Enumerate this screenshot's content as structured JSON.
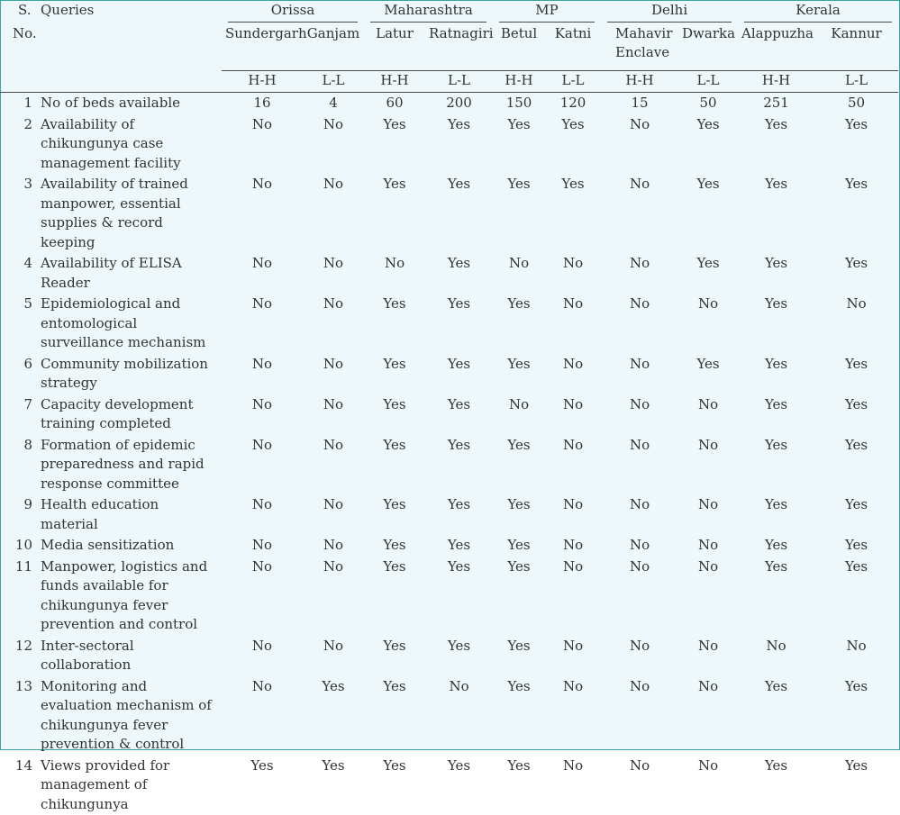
{
  "header": {
    "sno_label": "S.",
    "no_label": "No.",
    "queries_label": "Queries",
    "states": [
      {
        "name": "Orissa",
        "districts": [
          "Sundergarh",
          "Ganjam"
        ]
      },
      {
        "name": "Maharashtra",
        "districts": [
          "Latur",
          "Ratnagiri"
        ]
      },
      {
        "name": "MP",
        "districts": [
          "Betul",
          "Katni"
        ]
      },
      {
        "name": "Delhi",
        "districts": [
          "Mahavir Enclave",
          "Dwarka"
        ]
      },
      {
        "name": "Kerala",
        "districts": [
          "Alappuzha",
          "Kannur"
        ]
      }
    ],
    "types": [
      "H-H",
      "L-L",
      "H-H",
      "L-L",
      "H-H",
      "L-L",
      "H-H",
      "L-L",
      "H-H",
      "L-L"
    ]
  },
  "rows": [
    {
      "no": "1",
      "query": "No of beds available",
      "values": [
        "16",
        "4",
        "60",
        "200",
        "150",
        "120",
        "15",
        "50",
        "251",
        "50"
      ]
    },
    {
      "no": "2",
      "query": "Availability of chikungunya case management facility",
      "values": [
        "No",
        "No",
        "Yes",
        "Yes",
        "Yes",
        "Yes",
        "No",
        "Yes",
        "Yes",
        "Yes"
      ]
    },
    {
      "no": "3",
      "query": "Availability of trained manpower, essential supplies & record keeping",
      "values": [
        "No",
        "No",
        "Yes",
        "Yes",
        "Yes",
        "Yes",
        "No",
        "Yes",
        "Yes",
        "Yes"
      ]
    },
    {
      "no": "4",
      "query": "Availability of ELISA Reader",
      "values": [
        "No",
        "No",
        "No",
        "Yes",
        "No",
        "No",
        "No",
        "Yes",
        "Yes",
        "Yes"
      ]
    },
    {
      "no": "5",
      "query": "Epidemiological and entomological surveillance mechanism",
      "values": [
        "No",
        "No",
        "Yes",
        "Yes",
        "Yes",
        "No",
        "No",
        "No",
        "Yes",
        "No"
      ]
    },
    {
      "no": "6",
      "query": "Community mobilization strategy",
      "values": [
        "No",
        "No",
        "Yes",
        "Yes",
        "Yes",
        "No",
        "No",
        "Yes",
        "Yes",
        "Yes"
      ]
    },
    {
      "no": "7",
      "query": "Capacity development training completed",
      "values": [
        "No",
        "No",
        "Yes",
        "Yes",
        "No",
        "No",
        "No",
        "No",
        "Yes",
        "Yes"
      ]
    },
    {
      "no": "8",
      "query": "Formation of epidemic preparedness and rapid response committee",
      "values": [
        "No",
        "No",
        "Yes",
        "Yes",
        "Yes",
        "No",
        "No",
        "No",
        "Yes",
        "Yes"
      ]
    },
    {
      "no": "9",
      "query": "Health education material",
      "values": [
        "No",
        "No",
        "Yes",
        "Yes",
        "Yes",
        "No",
        "No",
        "No",
        "Yes",
        "Yes"
      ]
    },
    {
      "no": "10",
      "query": "Media sensitization",
      "values": [
        "No",
        "No",
        "Yes",
        "Yes",
        "Yes",
        "No",
        "No",
        "No",
        "Yes",
        "Yes"
      ]
    },
    {
      "no": "11",
      "query": "Manpower, logistics and funds available for chikungunya fever prevention and control",
      "values": [
        "No",
        "No",
        "Yes",
        "Yes",
        "Yes",
        "No",
        "No",
        "No",
        "Yes",
        "Yes"
      ]
    },
    {
      "no": "12",
      "query": "Inter-sectoral collaboration",
      "values": [
        "No",
        "No",
        "Yes",
        "Yes",
        "Yes",
        "No",
        "No",
        "No",
        "No",
        "No"
      ]
    },
    {
      "no": "13",
      "query": "Monitoring and evaluation mechanism of chikungunya fever prevention & control",
      "values": [
        "No",
        "Yes",
        "Yes",
        "No",
        "Yes",
        "No",
        "No",
        "No",
        "Yes",
        "Yes"
      ]
    },
    {
      "no": "14",
      "query": "Views provided for management of chikungunya",
      "values": [
        "Yes",
        "Yes",
        "Yes",
        "Yes",
        "Yes",
        "No",
        "No",
        "No",
        "Yes",
        "Yes"
      ]
    }
  ]
}
